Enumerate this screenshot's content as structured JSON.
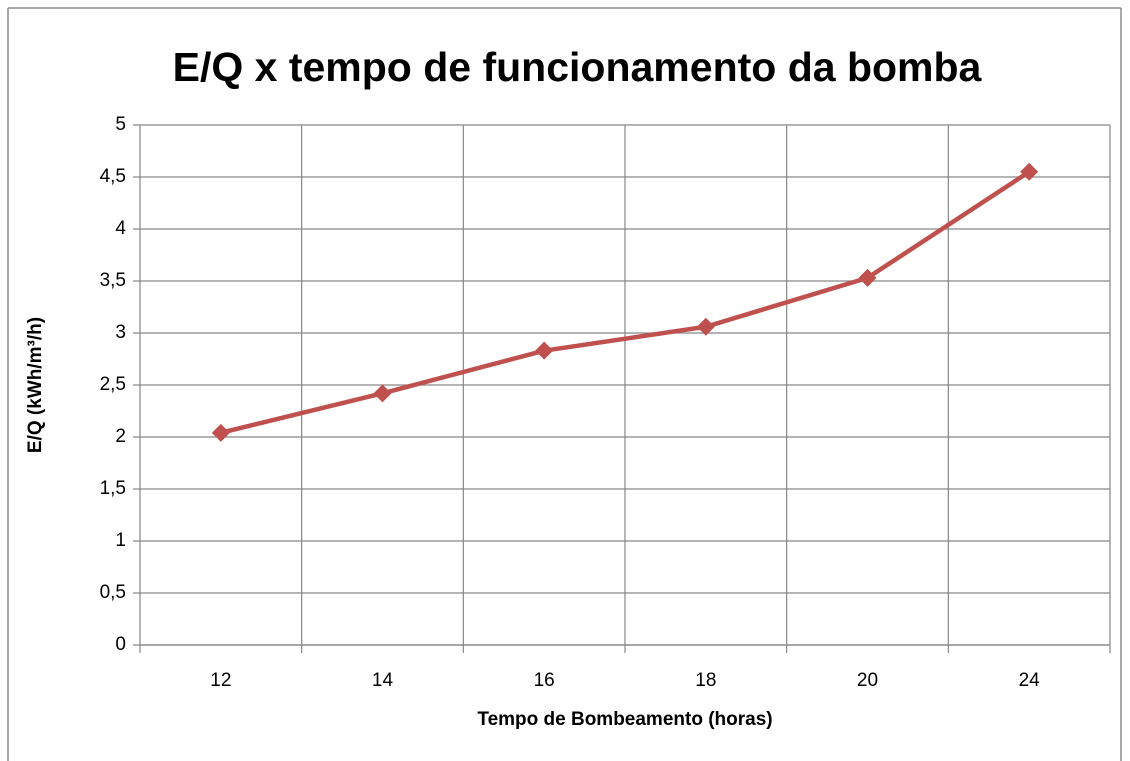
{
  "chart_data": {
    "type": "line",
    "title": "E/Q x tempo de funcionamento da bomba",
    "x_label": "Tempo de Bombeamento (horas)",
    "y_label": "E/Q (kWh/m³/h)",
    "categories": [
      12,
      14,
      16,
      18,
      20,
      24
    ],
    "series": [
      {
        "name": "E/Q",
        "color": "#c0504d",
        "values": [
          2.04,
          2.42,
          2.83,
          3.06,
          3.53,
          4.55
        ]
      }
    ],
    "ylim": [
      0,
      5
    ],
    "yticks": [
      0,
      {
        "value": 0.5,
        "label": "0,5"
      },
      1,
      {
        "value": 1.5,
        "label": "1,5"
      },
      2,
      {
        "value": 2.5,
        "label": "2,5"
      },
      3,
      {
        "value": 3.5,
        "label": "3,5"
      },
      4,
      {
        "value": 4.5,
        "label": "4,5"
      },
      5
    ],
    "grid": true
  }
}
